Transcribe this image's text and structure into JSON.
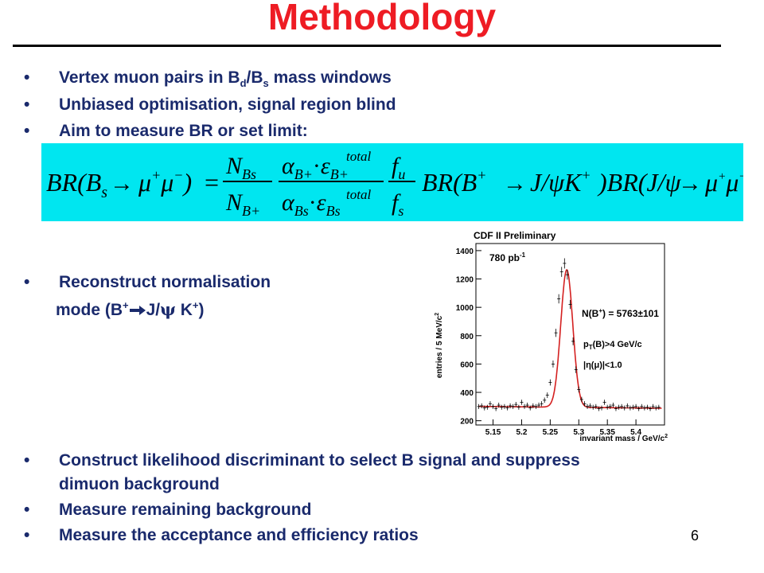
{
  "title": "Methodology",
  "bullets_top": [
    {
      "pre": "Vertex muon pairs in B",
      "sub1": "d",
      "mid": "/B",
      "sub2": "s",
      "post": " mass windows"
    },
    {
      "text": "Unbiased optimisation, signal region blind"
    },
    {
      "text": "Aim to measure BR or set limit:"
    }
  ],
  "formula": {
    "lhs": "BR(B",
    "lhs_sub": "s",
    "arrow": "→",
    "mu": "μ",
    "plus": "+",
    "minus": "−",
    "eq": "=",
    "n_bs": "N",
    "bs_sub": "Bs",
    "n_bplus": "N",
    "bplus_sub": "B+",
    "alpha": "α",
    "dot": "·",
    "eps": "ε",
    "total": "total",
    "f": "f",
    "fu_sub": "u",
    "fs_sub": "s",
    "br": "BR(B",
    "jpsi": "J/ψK",
    "br2": ")BR(J/ψ",
    "close": ")"
  },
  "bullet_mid": {
    "text": "Reconstruct normalisation",
    "mode_pre": "mode (B",
    "mode_sup": "+",
    "mode_mid": "J/",
    "psi": "ψ",
    "mode_k": " K",
    "mode_sup2": "+",
    "mode_post": ")"
  },
  "bullets_bottom": [
    {
      "text": "Construct likelihood discriminant to select B signal and suppress",
      "cont": "dimuon background"
    },
    {
      "text": "Measure remaining background"
    },
    {
      "text": "Measure the acceptance and efficiency ratios"
    }
  ],
  "bullet_char": "•",
  "page_number": "6",
  "chart_data": {
    "type": "line",
    "title": "CDF II Preliminary",
    "annotations": [
      "780 pb",
      "-1",
      "N(B",
      "+",
      ") = 5763±101",
      "p",
      "T",
      "(B)>4 GeV/c",
      "|η(μ)|<1.0"
    ],
    "xlabel": "invariant mass / GeV/c",
    "xlabel_sup": "2",
    "ylabel": "entries / 5 MeV/c",
    "ylabel_sup": "2",
    "xlim": [
      5.12,
      5.45
    ],
    "ylim": [
      170,
      1450
    ],
    "xticks": [
      "5.15",
      "5.2",
      "5.25",
      "5.3",
      "5.35",
      "5.4"
    ],
    "xtick_values": [
      5.15,
      5.2,
      5.25,
      5.3,
      5.35,
      5.4
    ],
    "yticks": [
      "200",
      "400",
      "600",
      "800",
      "1000",
      "1200",
      "1400"
    ],
    "ytick_values": [
      200,
      400,
      600,
      800,
      1000,
      1200,
      1400
    ],
    "fit": {
      "background": 295,
      "peak_mass": 5.279,
      "peak_height": 970,
      "sigma": 0.0105,
      "slope": -40
    },
    "points": {
      "x": [
        5.125,
        5.13,
        5.135,
        5.14,
        5.145,
        5.15,
        5.155,
        5.16,
        5.165,
        5.17,
        5.175,
        5.18,
        5.185,
        5.19,
        5.195,
        5.2,
        5.205,
        5.21,
        5.215,
        5.22,
        5.225,
        5.23,
        5.235,
        5.24,
        5.245,
        5.25,
        5.255,
        5.26,
        5.265,
        5.27,
        5.275,
        5.28,
        5.285,
        5.29,
        5.295,
        5.3,
        5.305,
        5.31,
        5.315,
        5.32,
        5.325,
        5.33,
        5.335,
        5.34,
        5.345,
        5.35,
        5.355,
        5.36,
        5.365,
        5.37,
        5.375,
        5.38,
        5.385,
        5.39,
        5.395,
        5.4,
        5.405,
        5.41,
        5.415,
        5.42,
        5.425,
        5.43,
        5.435,
        5.44
      ],
      "y": [
        300,
        305,
        290,
        295,
        320,
        300,
        285,
        310,
        295,
        300,
        290,
        305,
        300,
        315,
        295,
        330,
        300,
        310,
        290,
        305,
        300,
        310,
        320,
        345,
        380,
        470,
        600,
        820,
        1060,
        1250,
        1310,
        1230,
        1020,
        760,
        560,
        420,
        350,
        320,
        300,
        305,
        295,
        300,
        285,
        290,
        330,
        295,
        300,
        310,
        285,
        295,
        300,
        290,
        305,
        290,
        295,
        300,
        285,
        300,
        290,
        295,
        285,
        300,
        290,
        295
      ]
    }
  }
}
